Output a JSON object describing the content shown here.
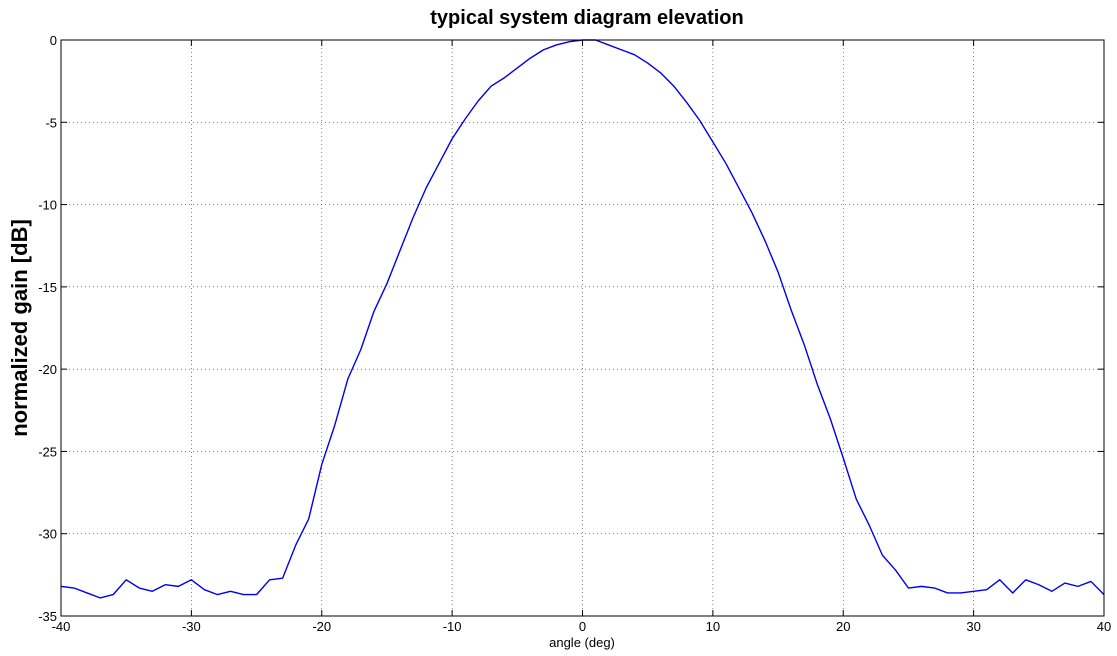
{
  "chart_data": {
    "type": "line",
    "title": "typical system diagram elevation",
    "xlabel": "angle (deg)",
    "ylabel": "normalized gain [dB]",
    "xlim": [
      -40,
      40
    ],
    "ylim": [
      -35,
      0
    ],
    "xticks": [
      -40,
      -30,
      -20,
      -10,
      0,
      10,
      20,
      30,
      40
    ],
    "yticks": [
      0,
      -5,
      -10,
      -15,
      -20,
      -25,
      -30,
      -35
    ],
    "grid": true,
    "line_color": "#0000ee",
    "series": [
      {
        "x": [
          -40,
          -39,
          -38,
          -37,
          -36,
          -35,
          -34,
          -33,
          -32,
          -31,
          -30,
          -29,
          -28,
          -27,
          -26,
          -25,
          -24,
          -23,
          -22,
          -21,
          -20,
          -19,
          -18,
          -17,
          -16,
          -15,
          -14,
          -13,
          -12,
          -11,
          -10,
          -9,
          -8,
          -7,
          -6,
          -5,
          -4,
          -3,
          -2,
          -1,
          0,
          1,
          2,
          3,
          4,
          5,
          6,
          7,
          8,
          9,
          10,
          11,
          12,
          13,
          14,
          15,
          16,
          17,
          18,
          19,
          20,
          21,
          22,
          23,
          24,
          25,
          26,
          27,
          28,
          29,
          30,
          31,
          32,
          33,
          34,
          35,
          36,
          37,
          38,
          39,
          40
        ],
        "y": [
          -33.2,
          -33.3,
          -33.6,
          -33.9,
          -33.7,
          -32.8,
          -33.3,
          -33.5,
          -33.1,
          -33.2,
          -32.8,
          -33.4,
          -33.7,
          -33.5,
          -33.7,
          -33.7,
          -32.8,
          -32.7,
          -30.7,
          -29.1,
          -25.8,
          -23.4,
          -20.6,
          -18.8,
          -16.5,
          -14.8,
          -12.8,
          -10.8,
          -9.0,
          -7.5,
          -6.0,
          -4.8,
          -3.7,
          -2.8,
          -2.3,
          -1.7,
          -1.1,
          -0.6,
          -0.3,
          -0.1,
          0,
          0,
          -0.3,
          -0.6,
          -0.9,
          -1.4,
          -2.0,
          -2.8,
          -3.8,
          -4.9,
          -6.2,
          -7.5,
          -9.0,
          -10.5,
          -12.2,
          -14.1,
          -16.4,
          -18.5,
          -20.9,
          -23.0,
          -25.4,
          -27.9,
          -29.5,
          -31.3,
          -32.2,
          -33.3,
          -33.2,
          -33.3,
          -33.6,
          -33.6,
          -33.5,
          -33.4,
          -32.8,
          -33.6,
          -32.8,
          -33.1,
          -33.5,
          -33.0,
          -33.2,
          -32.9,
          -33.7
        ]
      }
    ]
  }
}
